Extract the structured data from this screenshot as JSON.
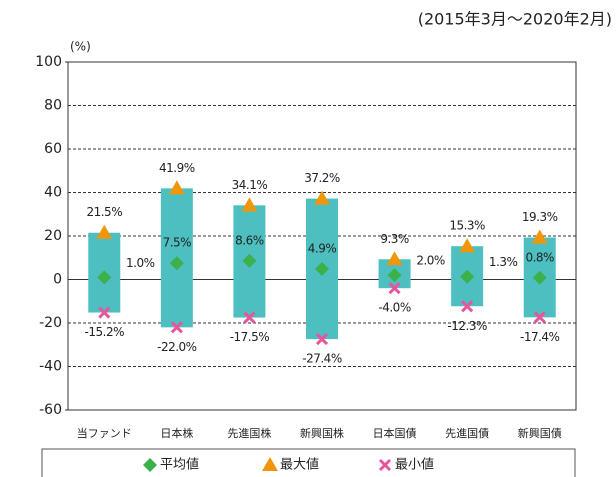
{
  "chart_data": {
    "type": "range",
    "subtitle": "(2015年3月～2020年2月)",
    "y_label": "(%)",
    "categories": [
      "当ファンド",
      "日本株",
      "先進国株",
      "新興国株",
      "日本国債",
      "先進国債",
      "新興国債"
    ],
    "bar_color": "#4dbfc0",
    "series": [
      {
        "name": "平均値",
        "color": "#3cb04a",
        "marker": "diamond",
        "values": [
          1.0,
          7.5,
          8.6,
          4.9,
          2.0,
          1.3,
          0.8
        ],
        "value_labels": [
          "1.0%",
          "7.5%",
          "8.6%",
          "4.9%",
          "2.0%",
          "1.3%",
          "0.8%"
        ]
      },
      {
        "name": "最大値",
        "color": "#f0960a",
        "marker": "triangle",
        "values": [
          21.5,
          41.9,
          34.1,
          37.2,
          9.3,
          15.3,
          19.3
        ],
        "value_labels": [
          "21.5%",
          "41.9%",
          "34.1%",
          "37.2%",
          "9.3%",
          "15.3%",
          "19.3%"
        ]
      },
      {
        "name": "最小値",
        "color": "#e8559a",
        "marker": "cross",
        "values": [
          -15.2,
          -22.0,
          -17.5,
          -27.4,
          -4.0,
          -12.3,
          -17.4
        ],
        "value_labels": [
          "-15.2%",
          "-22.0%",
          "-17.5%",
          "-27.4%",
          "-4.0%",
          "-12.3%",
          "-17.4%"
        ]
      }
    ],
    "ylim": [
      -60,
      100
    ],
    "yticks": [
      -60,
      -40,
      -20,
      0,
      20,
      40,
      60,
      80,
      100
    ],
    "grid": true
  }
}
